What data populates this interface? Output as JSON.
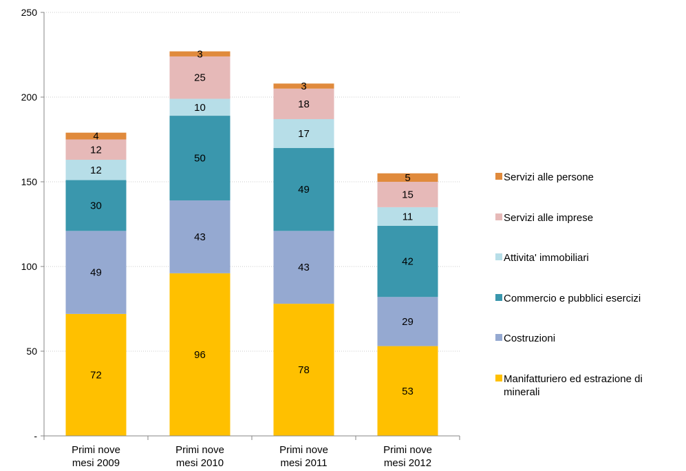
{
  "chart_data": {
    "type": "bar",
    "stacked": true,
    "categories": [
      [
        "Primi nove",
        "mesi 2009"
      ],
      [
        "Primi nove",
        "mesi 2010"
      ],
      [
        "Primi nove",
        "mesi 2011"
      ],
      [
        "Primi nove",
        "mesi 2012"
      ]
    ],
    "series": [
      {
        "name": "Manifatturiero ed estrazione di minerali",
        "color": "#FFC000",
        "values": [
          72,
          96,
          78,
          53
        ]
      },
      {
        "name": "Costruzioni",
        "color": "#95A9D1",
        "values": [
          49,
          43,
          43,
          29
        ]
      },
      {
        "name": "Commercio e pubblici esercizi",
        "color": "#3A97AD",
        "values": [
          30,
          50,
          49,
          42
        ]
      },
      {
        "name": "Attivita' immobiliari",
        "color": "#B7DEE8",
        "values": [
          12,
          10,
          17,
          11
        ]
      },
      {
        "name": "Servizi alle imprese",
        "color": "#E6B9B8",
        "values": [
          12,
          25,
          18,
          15
        ]
      },
      {
        "name": "Servizi alle persone",
        "color": "#E08A3C",
        "values": [
          4,
          3,
          3,
          5
        ]
      }
    ],
    "legend_order": [
      5,
      4,
      3,
      2,
      1,
      0
    ],
    "legend_lines": [
      [
        "Servizi alle persone"
      ],
      [
        "Servizi alle imprese"
      ],
      [
        "Attivita' immobiliari"
      ],
      [
        "Commercio e pubblici esercizi"
      ],
      [
        "Costruzioni"
      ],
      [
        "Manifatturiero ed estrazione di",
        "minerali"
      ]
    ],
    "ylim": [
      0,
      250
    ],
    "yticks": [
      0,
      50,
      100,
      150,
      200,
      250
    ],
    "ytick_labels": [
      "-",
      "50",
      "100",
      "150",
      "200",
      "250"
    ],
    "grid": true,
    "legend_position": "right"
  }
}
